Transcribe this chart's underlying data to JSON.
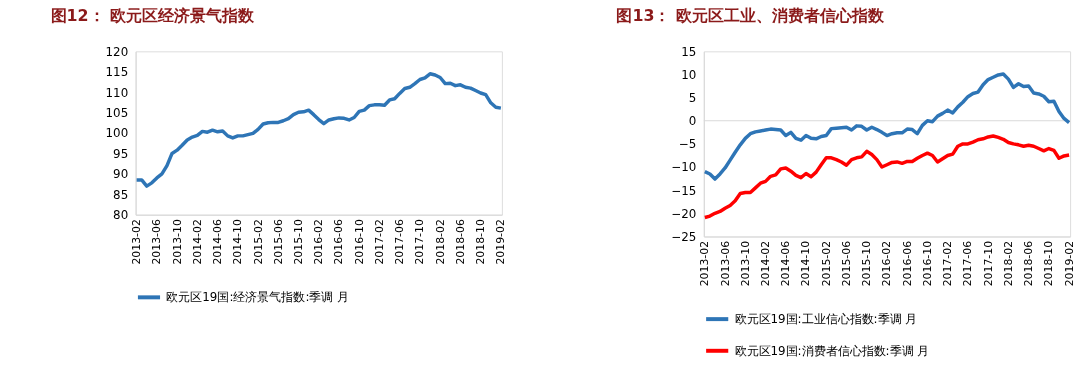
{
  "chart_data": [
    {
      "type": "line",
      "title": "图12：  欧元区经济景气指数",
      "categories": [
        "2013-02",
        null,
        null,
        null,
        "2013-06",
        null,
        null,
        null,
        "2013-10",
        null,
        null,
        null,
        "2014-02",
        null,
        null,
        null,
        "2014-06",
        null,
        null,
        null,
        "2014-10",
        null,
        null,
        null,
        "2015-02",
        null,
        null,
        null,
        "2015-06",
        null,
        null,
        null,
        "2015-10",
        null,
        null,
        null,
        "2016-02",
        null,
        null,
        null,
        "2016-06",
        null,
        null,
        null,
        "2016-10",
        null,
        null,
        null,
        "2017-02",
        null,
        null,
        null,
        "2017-06",
        null,
        null,
        null,
        "2017-10",
        null,
        null,
        null,
        "2018-02",
        null,
        null,
        null,
        "2018-06",
        null,
        null,
        null,
        "2018-10",
        null,
        null,
        null,
        "2019-02"
      ],
      "series": [
        {
          "name": "欧元区19国:经济景气指数:季调 月",
          "color": "#2e75b6",
          "values": [
            88.5,
            88.5,
            87,
            87.8,
            89,
            90,
            92,
            95,
            95.8,
            97,
            98.3,
            99,
            99.4,
            100.4,
            100.2,
            100.7,
            100.3,
            100.5,
            99.3,
            98.8,
            99.3,
            99.3,
            99.6,
            99.9,
            100.9,
            102.2,
            102.5,
            102.6,
            102.6,
            103,
            103.5,
            104.5,
            105.1,
            105.2,
            105.6,
            104.5,
            103.3,
            102.3,
            103.2,
            103.5,
            103.7,
            103.6,
            103.2,
            103.8,
            105.3,
            105.6,
            106.7,
            106.9,
            106.9,
            106.8,
            108.1,
            108.4,
            109.7,
            110.9,
            111.2,
            112.1,
            113.1,
            113.5,
            114.5,
            114.2,
            113.6,
            112.1,
            112.2,
            111.6,
            111.8,
            111.2,
            111,
            110.4,
            109.8,
            109.4,
            107.4,
            106.3,
            106.1
          ]
        }
      ],
      "ylim": [
        80,
        120
      ],
      "yticks": [
        80,
        85,
        90,
        95,
        100,
        105,
        110,
        115,
        120
      ],
      "grid": false,
      "legend": "bottom",
      "marker": "none",
      "line_style": "solid"
    },
    {
      "type": "line",
      "title": "图13：  欧元区工业、消费者信心指数",
      "categories": [
        "2013-02",
        null,
        null,
        null,
        "2013-06",
        null,
        null,
        null,
        "2013-10",
        null,
        null,
        null,
        "2014-02",
        null,
        null,
        null,
        "2014-06",
        null,
        null,
        null,
        "2014-10",
        null,
        null,
        null,
        "2015-02",
        null,
        null,
        null,
        "2015-06",
        null,
        null,
        null,
        "2015-10",
        null,
        null,
        null,
        "2016-02",
        null,
        null,
        null,
        "2016-06",
        null,
        null,
        null,
        "2016-10",
        null,
        null,
        null,
        "2017-02",
        null,
        null,
        null,
        "2017-06",
        null,
        null,
        null,
        "2017-10",
        null,
        null,
        null,
        "2018-02",
        null,
        null,
        null,
        "2018-06",
        null,
        null,
        null,
        "2018-10",
        null,
        null,
        null,
        "2019-02"
      ],
      "series": [
        {
          "name": "欧元区19国:工业信心指数:季调 月",
          "color": "#2e75b6",
          "values": [
            -11,
            -11.5,
            -12.6,
            -11.5,
            -10.2,
            -8.5,
            -6.8,
            -5.2,
            -3.8,
            -2.8,
            -2.4,
            -2.2,
            -2.0,
            -1.8,
            -1.9,
            -2.0,
            -3.2,
            -2.5,
            -3.8,
            -4.2,
            -3.2,
            -3.8,
            -3.9,
            -3.4,
            -3.2,
            -1.7,
            -1.6,
            -1.5,
            -1.4,
            -2.0,
            -1.1,
            -1.2,
            -2.0,
            -1.4,
            -1.9,
            -2.5,
            -3.2,
            -2.8,
            -2.6,
            -2.6,
            -1.8,
            -1.9,
            -2.8,
            -1.0,
            0.0,
            -0.2,
            1.0,
            1.6,
            2.3,
            1.7,
            3.0,
            4.0,
            5.2,
            5.9,
            6.2,
            7.8,
            8.9,
            9.4,
            9.9,
            10.1,
            9.0,
            7.2,
            8.0,
            7.4,
            7.5,
            6.0,
            5.8,
            5.3,
            4.1,
            4.2,
            2.0,
            0.5,
            -0.4
          ]
        },
        {
          "name": "欧元区19国:消费者信心指数:季调 月",
          "color": "#ff0000",
          "values": [
            -20.9,
            -20.6,
            -20,
            -19.6,
            -18.9,
            -18.3,
            -17.3,
            -15.7,
            -15.5,
            -15.5,
            -14.5,
            -13.5,
            -13.1,
            -12.0,
            -11.7,
            -10.4,
            -10.2,
            -10.9,
            -11.8,
            -12.3,
            -11.4,
            -12.1,
            -11.1,
            -9.5,
            -8.0,
            -8.0,
            -8.4,
            -8.9,
            -9.6,
            -8.4,
            -8.0,
            -7.8,
            -6.6,
            -7.3,
            -8.4,
            -10.0,
            -9.5,
            -9.0,
            -8.9,
            -9.2,
            -8.8,
            -8.8,
            -8.1,
            -7.5,
            -7.0,
            -7.5,
            -8.9,
            -8.2,
            -7.5,
            -7.2,
            -5.5,
            -5.0,
            -5.0,
            -4.6,
            -4.1,
            -3.9,
            -3.5,
            -3.3,
            -3.6,
            -4.0,
            -4.7,
            -5.0,
            -5.2,
            -5.5,
            -5.3,
            -5.5,
            -6.0,
            -6.5,
            -6.0,
            -6.4,
            -8.1,
            -7.6,
            -7.4
          ]
        }
      ],
      "ref_lines": [
        {
          "axis": "y",
          "value": 0,
          "color": "#d9d9d9"
        }
      ],
      "ylim": [
        -25,
        15
      ],
      "yticks": [
        -25,
        -20,
        -15,
        -10,
        -5,
        0,
        5,
        10,
        15
      ],
      "grid": false,
      "legend": "bottom",
      "marker": "none",
      "line_style": "solid"
    }
  ]
}
